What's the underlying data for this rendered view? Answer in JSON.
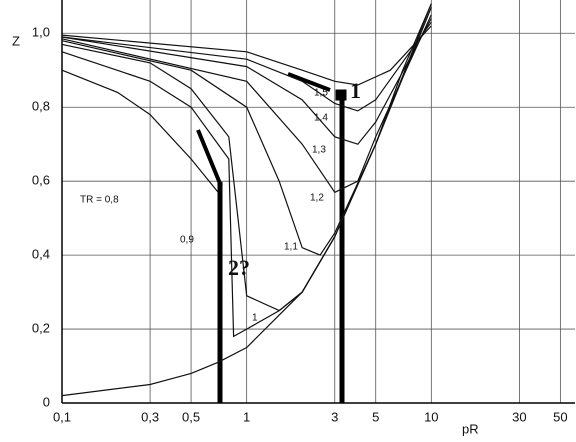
{
  "chart_data": {
    "type": "line",
    "y_label": "Z",
    "x_label": "pR",
    "log_x": true,
    "grid": true,
    "xlim": [
      0.1,
      60
    ],
    "ylim": [
      0,
      1.09
    ],
    "xticks": [
      {
        "value": 0.1,
        "label": "0,1"
      },
      {
        "value": 0.3,
        "label": "0,3"
      },
      {
        "value": 0.5,
        "label": "0,5"
      },
      1,
      3,
      5,
      10,
      30,
      50
    ],
    "yticks": [
      0,
      {
        "value": 0.2,
        "label": "0,2"
      },
      {
        "value": 0.4,
        "label": "0,4"
      },
      {
        "value": 0.6,
        "label": "0,6"
      },
      {
        "value": 0.8,
        "label": "0,8"
      },
      {
        "value": 1.0,
        "label": "1,0"
      }
    ],
    "series": [
      {
        "name": "TR = 0,8",
        "color": "#111111",
        "x": [
          0.1,
          0.2,
          0.3,
          0.5,
          0.7,
          0.7,
          0.1,
          0.3,
          0.5,
          0.7,
          1,
          2,
          3,
          5,
          7,
          10
        ],
        "values": [
          0.9,
          0.84,
          0.78,
          0.66,
          0.57,
          null,
          0.02,
          0.05,
          0.08,
          0.11,
          0.15,
          0.3,
          0.45,
          0.7,
          0.9,
          1.08
        ]
      },
      {
        "name": "0,9",
        "color": "#111111",
        "x": [
          0.1,
          0.3,
          0.5,
          0.8,
          0.85,
          1,
          1.5,
          2,
          3
        ],
        "values": [
          0.95,
          0.87,
          0.8,
          0.66,
          0.18,
          0.2,
          0.25,
          0.3,
          0.45
        ]
      },
      {
        "name": "1",
        "color": "#111111",
        "x": [
          0.1,
          0.3,
          0.5,
          0.8,
          1,
          1.5,
          2,
          3,
          5,
          10
        ],
        "values": [
          0.97,
          0.92,
          0.85,
          0.72,
          0.29,
          0.25,
          0.3,
          0.45,
          0.7,
          1.08
        ]
      },
      {
        "name": "1,1",
        "color": "#111111",
        "x": [
          0.1,
          0.5,
          1,
          1.5,
          2,
          2.5,
          3,
          5,
          10
        ],
        "values": [
          0.98,
          0.9,
          0.8,
          0.6,
          0.42,
          0.4,
          0.46,
          0.7,
          1.07
        ]
      },
      {
        "name": "1,2",
        "color": "#111111",
        "x": [
          0.1,
          1,
          2,
          3,
          4,
          5,
          10
        ],
        "values": [
          0.985,
          0.87,
          0.7,
          0.57,
          0.6,
          0.72,
          1.05
        ]
      },
      {
        "name": "1,3",
        "color": "#111111",
        "x": [
          0.1,
          1,
          2,
          3,
          4,
          5,
          10
        ],
        "values": [
          0.99,
          0.91,
          0.82,
          0.72,
          0.7,
          0.76,
          1.04
        ]
      },
      {
        "name": "1,4",
        "color": "#111111",
        "x": [
          0.1,
          1,
          2,
          3,
          4,
          5,
          10
        ],
        "values": [
          0.99,
          0.93,
          0.87,
          0.81,
          0.79,
          0.82,
          1.03
        ]
      },
      {
        "name": "1,5",
        "color": "#111111",
        "x": [
          0.1,
          1,
          2,
          3,
          4,
          6,
          10
        ],
        "values": [
          0.995,
          0.95,
          0.9,
          0.87,
          0.86,
          0.9,
          1.02
        ]
      }
    ],
    "annotations": [
      "1",
      "2?"
    ]
  }
}
